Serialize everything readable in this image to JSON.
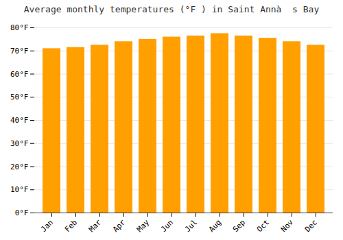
{
  "chart_data": {
    "type": "bar",
    "title": "Average monthly temperatures (°F ) in Saint Annà  s Bay",
    "categories": [
      "Jan",
      "Feb",
      "Mar",
      "Apr",
      "May",
      "Jun",
      "Jul",
      "Aug",
      "Sep",
      "Oct",
      "Nov",
      "Dec"
    ],
    "values": [
      71,
      71.5,
      72.5,
      74,
      75,
      76,
      76.5,
      77.5,
      76.5,
      75.5,
      74,
      72.5
    ],
    "color": "#FFA000",
    "ylim": [
      0,
      80
    ],
    "yticks": [
      {
        "value": 0,
        "label": "0°F"
      },
      {
        "value": 10,
        "label": "10°F"
      },
      {
        "value": 20,
        "label": "20°F"
      },
      {
        "value": 30,
        "label": "30°F"
      },
      {
        "value": 40,
        "label": "40°F"
      },
      {
        "value": 50,
        "label": "50°F"
      },
      {
        "value": 60,
        "label": "60°F"
      },
      {
        "value": 70,
        "label": "70°F"
      },
      {
        "value": 80,
        "label": "80°F"
      }
    ],
    "grid": true
  }
}
